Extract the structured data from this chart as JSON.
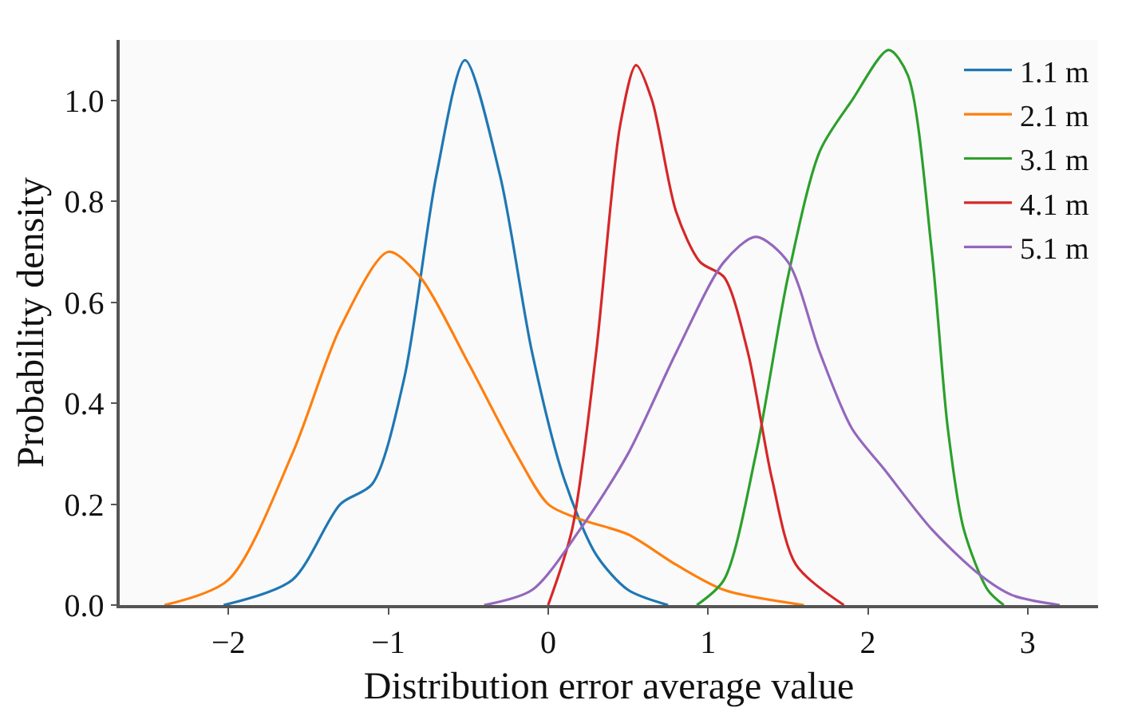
{
  "chart_data": {
    "type": "line",
    "xlabel": "Distribution error average value",
    "ylabel": "Probability density",
    "xlim": [
      -2.68,
      3.44
    ],
    "ylim": [
      0,
      1.12
    ],
    "xticks": [
      {
        "value": -2,
        "label": "−2"
      },
      {
        "value": -1,
        "label": "−1"
      },
      0,
      1,
      2,
      3
    ],
    "yticks": [
      {
        "value": 0,
        "label": "0.0"
      },
      0.2,
      0.4,
      0.6,
      0.8,
      {
        "value": 1,
        "label": "1.0"
      }
    ],
    "legend": "top right",
    "marker": "none",
    "line_style": "solid",
    "series": [
      {
        "name": "1.1 m",
        "color": "#1f77b4",
        "x": [
          -2.03,
          -1.6,
          -1.3,
          -1.1,
          -0.9,
          -0.7,
          -0.52,
          -0.3,
          -0.1,
          0.1,
          0.3,
          0.5,
          0.75
        ],
        "values": [
          0,
          0.05,
          0.2,
          0.24,
          0.45,
          0.85,
          1.08,
          0.85,
          0.5,
          0.25,
          0.1,
          0.03,
          0
        ]
      },
      {
        "name": "2.1 m",
        "color": "#ff7f0e",
        "x": [
          -2.4,
          -2.0,
          -1.6,
          -1.3,
          -1.0,
          -0.8,
          -0.5,
          -0.2,
          0,
          0.2,
          0.5,
          0.8,
          1.1,
          1.6
        ],
        "values": [
          0,
          0.05,
          0.3,
          0.55,
          0.7,
          0.65,
          0.48,
          0.3,
          0.2,
          0.17,
          0.14,
          0.08,
          0.03,
          0
        ]
      },
      {
        "name": "3.1 m",
        "color": "#2ca02c",
        "x": [
          0.93,
          1.1,
          1.3,
          1.5,
          1.7,
          1.9,
          2.13,
          2.25,
          2.4,
          2.5,
          2.6,
          2.75,
          2.85
        ],
        "values": [
          0,
          0.05,
          0.3,
          0.65,
          0.9,
          1.0,
          1.1,
          1.05,
          0.7,
          0.35,
          0.15,
          0.03,
          0
        ]
      },
      {
        "name": "4.1 m",
        "color": "#d62728",
        "x": [
          0.0,
          0.15,
          0.3,
          0.45,
          0.55,
          0.65,
          0.8,
          0.95,
          1.1,
          1.25,
          1.4,
          1.55,
          1.85
        ],
        "values": [
          0,
          0.15,
          0.5,
          0.95,
          1.07,
          1.0,
          0.78,
          0.68,
          0.65,
          0.5,
          0.25,
          0.08,
          0
        ]
      },
      {
        "name": "5.1 m",
        "color": "#9467bd",
        "x": [
          -0.4,
          -0.1,
          0.2,
          0.5,
          0.8,
          1.1,
          1.3,
          1.5,
          1.7,
          1.9,
          2.1,
          2.4,
          2.7,
          2.9,
          3.2
        ],
        "values": [
          0,
          0.03,
          0.15,
          0.3,
          0.5,
          0.68,
          0.73,
          0.68,
          0.5,
          0.35,
          0.27,
          0.15,
          0.06,
          0.02,
          0
        ]
      }
    ]
  }
}
